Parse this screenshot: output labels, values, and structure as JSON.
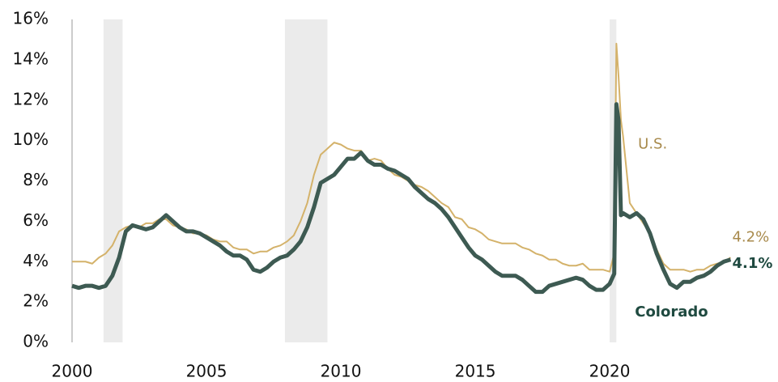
{
  "chart_data": {
    "type": "line",
    "x": [
      2000,
      2000.25,
      2000.5,
      2000.75,
      2001,
      2001.25,
      2001.5,
      2001.75,
      2002,
      2002.25,
      2002.5,
      2002.75,
      2003,
      2003.25,
      2003.5,
      2003.75,
      2004,
      2004.25,
      2004.5,
      2004.75,
      2005,
      2005.25,
      2005.5,
      2005.75,
      2006,
      2006.25,
      2006.5,
      2006.75,
      2007,
      2007.25,
      2007.5,
      2007.75,
      2008,
      2008.25,
      2008.5,
      2008.75,
      2009,
      2009.25,
      2009.5,
      2009.75,
      2010,
      2010.25,
      2010.5,
      2010.75,
      2011,
      2011.25,
      2011.5,
      2011.75,
      2012,
      2012.25,
      2012.5,
      2012.75,
      2013,
      2013.25,
      2013.5,
      2013.75,
      2014,
      2014.25,
      2014.5,
      2014.75,
      2015,
      2015.25,
      2015.5,
      2015.75,
      2016,
      2016.25,
      2016.5,
      2016.75,
      2017,
      2017.25,
      2017.5,
      2017.75,
      2018,
      2018.25,
      2018.5,
      2018.75,
      2019,
      2019.25,
      2019.5,
      2019.75,
      2020,
      2020.17,
      2020.25,
      2020.33,
      2020.42,
      2020.5,
      2020.75,
      2021,
      2021.25,
      2021.5,
      2021.75,
      2022,
      2022.25,
      2022.5,
      2022.75,
      2023,
      2023.25,
      2023.5,
      2023.75,
      2024,
      2024.25,
      2024.5
    ],
    "series": [
      {
        "name": "U.S.",
        "color": "#d4b26a",
        "label_color": "#a88a4c",
        "width": 2,
        "end_label": "4.2%",
        "values": [
          4.0,
          4.0,
          4.0,
          3.9,
          4.2,
          4.4,
          4.8,
          5.5,
          5.7,
          5.8,
          5.7,
          5.9,
          5.9,
          6.1,
          6.1,
          5.8,
          5.7,
          5.6,
          5.4,
          5.4,
          5.3,
          5.1,
          5.0,
          5.0,
          4.7,
          4.6,
          4.6,
          4.4,
          4.5,
          4.5,
          4.7,
          4.8,
          5.0,
          5.3,
          6.0,
          6.9,
          8.3,
          9.3,
          9.6,
          9.9,
          9.8,
          9.6,
          9.5,
          9.5,
          9.0,
          9.1,
          9.0,
          8.6,
          8.3,
          8.2,
          8.0,
          7.8,
          7.7,
          7.5,
          7.2,
          6.9,
          6.7,
          6.2,
          6.1,
          5.7,
          5.6,
          5.4,
          5.1,
          5.0,
          4.9,
          4.9,
          4.9,
          4.7,
          4.6,
          4.4,
          4.3,
          4.1,
          4.1,
          3.9,
          3.8,
          3.8,
          3.9,
          3.6,
          3.6,
          3.6,
          3.5,
          4.4,
          14.8,
          13.2,
          11.0,
          10.2,
          6.9,
          6.4,
          5.9,
          5.4,
          4.6,
          3.9,
          3.6,
          3.6,
          3.6,
          3.5,
          3.6,
          3.6,
          3.8,
          3.9,
          4.0,
          4.2
        ]
      },
      {
        "name": "Colorado",
        "color": "#3d5a52",
        "label_color": "#1f4a40",
        "width": 5,
        "end_label": "4.1%",
        "values": [
          2.8,
          2.7,
          2.8,
          2.8,
          2.7,
          2.8,
          3.3,
          4.2,
          5.5,
          5.8,
          5.7,
          5.6,
          5.7,
          6.0,
          6.3,
          6.0,
          5.7,
          5.5,
          5.5,
          5.4,
          5.2,
          5.0,
          4.8,
          4.5,
          4.3,
          4.3,
          4.1,
          3.6,
          3.5,
          3.7,
          4.0,
          4.2,
          4.3,
          4.6,
          5.0,
          5.7,
          6.7,
          7.9,
          8.1,
          8.3,
          8.7,
          9.1,
          9.1,
          9.4,
          9.0,
          8.8,
          8.8,
          8.6,
          8.5,
          8.3,
          8.1,
          7.7,
          7.4,
          7.1,
          6.9,
          6.6,
          6.2,
          5.7,
          5.2,
          4.7,
          4.3,
          4.1,
          3.8,
          3.5,
          3.3,
          3.3,
          3.3,
          3.1,
          2.8,
          2.5,
          2.5,
          2.8,
          2.9,
          3.0,
          3.1,
          3.2,
          3.1,
          2.8,
          2.6,
          2.6,
          2.9,
          3.4,
          11.8,
          11.0,
          6.3,
          6.4,
          6.2,
          6.4,
          6.1,
          5.4,
          4.4,
          3.6,
          2.9,
          2.7,
          3.0,
          3.0,
          3.2,
          3.3,
          3.5,
          3.8,
          4.0,
          4.1
        ]
      }
    ],
    "recessions": [
      [
        2001.17,
        2001.88
      ],
      [
        2007.92,
        2009.5
      ],
      [
        2020.0,
        2020.25
      ]
    ],
    "xlim": [
      2000,
      2025.6
    ],
    "xticks": [
      2000,
      2005,
      2010,
      2015,
      2020
    ],
    "ylim": [
      0,
      16
    ],
    "yticks": [
      {
        "value": 0,
        "label": "0%"
      },
      {
        "value": 2,
        "label": "2%"
      },
      {
        "value": 4,
        "label": "4%"
      },
      {
        "value": 6,
        "label": "6%"
      },
      {
        "value": 8,
        "label": "8%"
      },
      {
        "value": 10,
        "label": "10%"
      },
      {
        "value": 12,
        "label": "12%"
      },
      {
        "value": 14,
        "label": "14%"
      },
      {
        "value": 16,
        "label": "16%"
      }
    ],
    "grid": false
  }
}
